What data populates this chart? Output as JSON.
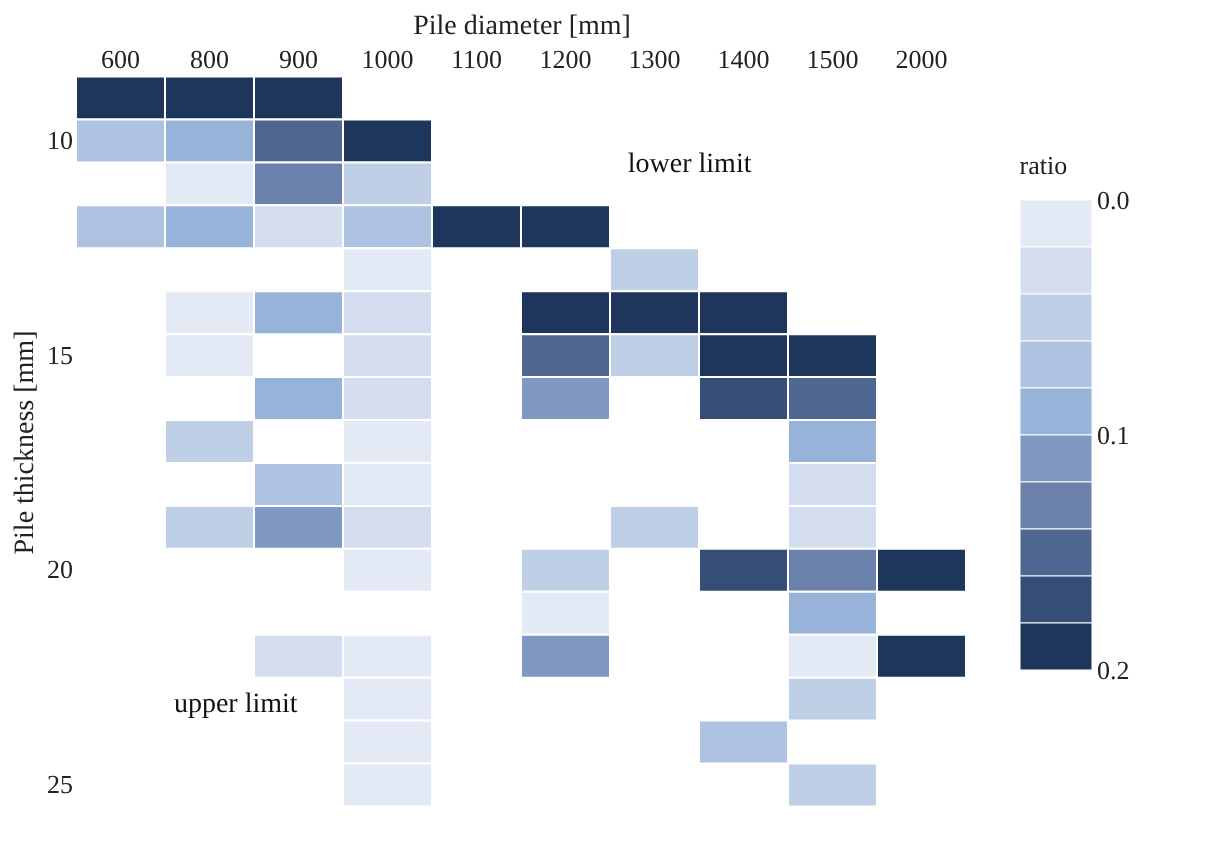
{
  "chart_data": {
    "type": "heatmap",
    "xlabel": "Pile diameter [mm]",
    "ylabel": "Pile thickness [mm]",
    "clabel": "ratio",
    "categories": [
      "600",
      "800",
      "900",
      "1000",
      "1100",
      "1200",
      "1300",
      "1400",
      "1500",
      "2000"
    ],
    "y_categories": [
      null,
      "10",
      null,
      null,
      null,
      null,
      "15",
      null,
      null,
      null,
      null,
      "20",
      null,
      null,
      null,
      null,
      "25"
    ],
    "cells": [
      [
        0.19,
        0.19,
        0.19,
        null,
        null,
        null,
        null,
        null,
        null,
        null
      ],
      [
        0.07,
        0.09,
        0.15,
        0.19,
        null,
        null,
        null,
        null,
        null,
        null
      ],
      [
        null,
        0.01,
        0.13,
        0.05,
        null,
        null,
        null,
        null,
        null,
        null
      ],
      [
        0.07,
        0.09,
        0.03,
        0.07,
        0.19,
        0.19,
        null,
        null,
        null,
        null
      ],
      [
        null,
        null,
        null,
        0.01,
        null,
        null,
        0.05,
        null,
        null,
        null
      ],
      [
        null,
        0.01,
        0.09,
        0.03,
        null,
        0.19,
        0.19,
        0.19,
        null,
        null
      ],
      [
        null,
        0.01,
        null,
        0.03,
        null,
        0.15,
        0.05,
        0.19,
        0.19,
        null
      ],
      [
        null,
        null,
        0.09,
        0.03,
        null,
        0.11,
        null,
        0.17,
        0.15,
        null
      ],
      [
        null,
        0.05,
        null,
        0.01,
        null,
        null,
        null,
        null,
        0.09,
        null
      ],
      [
        null,
        null,
        0.07,
        0.01,
        null,
        null,
        null,
        null,
        0.03,
        null
      ],
      [
        null,
        0.05,
        0.11,
        0.03,
        null,
        null,
        0.05,
        null,
        0.03,
        null
      ],
      [
        null,
        null,
        null,
        0.01,
        null,
        0.05,
        null,
        0.17,
        0.13,
        0.19
      ],
      [
        null,
        null,
        null,
        null,
        null,
        0.01,
        null,
        null,
        0.09,
        null
      ],
      [
        null,
        null,
        0.03,
        0.01,
        null,
        0.11,
        null,
        null,
        0.01,
        0.19
      ],
      [
        null,
        null,
        null,
        0.01,
        null,
        null,
        null,
        null,
        0.05,
        null
      ],
      [
        null,
        null,
        null,
        0.01,
        null,
        null,
        null,
        0.07,
        null,
        null
      ],
      [
        null,
        null,
        null,
        0.01,
        null,
        null,
        null,
        null,
        0.05,
        null
      ]
    ],
    "clim": [
      0,
      0.2
    ],
    "cticks": [
      {
        "value": 0,
        "label": "0.0"
      },
      0.1,
      0.2
    ],
    "annotations": [
      "lower limit",
      "upper limit"
    ]
  }
}
